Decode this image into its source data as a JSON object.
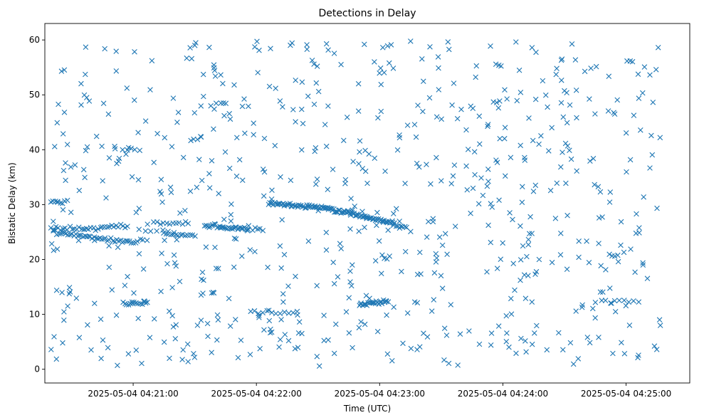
{
  "chart_data": {
    "type": "scatter",
    "title": "Detections in Delay",
    "xlabel": "Time (UTC)",
    "ylabel": "Bistatic Delay (km)",
    "marker": "x",
    "color": "#1f77b4",
    "grid": false,
    "xlim": [
      "2025-05-04 04:20:17",
      "2025-05-04 04:25:31"
    ],
    "ylim": [
      -2.5,
      63
    ],
    "x_ticks": [
      "2025-05-04 04:21:00",
      "2025-05-04 04:22:00",
      "2025-05-04 04:23:00",
      "2025-05-04 04:24:00",
      "2025-05-04 04:25:00"
    ],
    "y_ticks": [
      0,
      10,
      20,
      30,
      40,
      50,
      60
    ],
    "tracks": [
      {
        "x_start": "2025-05-04 04:20:20",
        "x_end": "2025-05-04 04:20:28",
        "y_start": 30.5,
        "y_end": 30.6,
        "n": 8
      },
      {
        "x_start": "2025-05-04 04:20:20",
        "x_end": "2025-05-04 04:20:44",
        "y_start": 25.8,
        "y_end": 25.5,
        "n": 22
      },
      {
        "x_start": "2025-05-04 04:20:21",
        "x_end": "2025-05-04 04:21:02",
        "y_start": 25.0,
        "y_end": 23.0,
        "n": 46
      },
      {
        "x_start": "2025-05-04 04:20:45",
        "x_end": "2025-05-04 04:20:57",
        "y_start": 26.0,
        "y_end": 26.0,
        "n": 12
      },
      {
        "x_start": "2025-05-04 04:20:55",
        "x_end": "2025-05-04 04:21:07",
        "y_start": 12.1,
        "y_end": 12.0,
        "n": 14
      },
      {
        "x_start": "2025-05-04 04:21:03",
        "x_end": "2025-05-04 04:21:20",
        "y_start": 25.2,
        "y_end": 25.1,
        "n": 7
      },
      {
        "x_start": "2025-05-04 04:21:10",
        "x_end": "2025-05-04 04:21:27",
        "y_start": 26.8,
        "y_end": 26.6,
        "n": 12
      },
      {
        "x_start": "2025-05-04 04:21:15",
        "x_end": "2025-05-04 04:21:30",
        "y_start": 24.6,
        "y_end": 24.3,
        "n": 14
      },
      {
        "x_start": "2025-05-04 04:21:35",
        "x_end": "2025-05-04 04:21:56",
        "y_start": 26.2,
        "y_end": 25.6,
        "n": 34
      },
      {
        "x_start": "2025-05-04 04:21:58",
        "x_end": "2025-05-04 04:22:03",
        "y_start": 25.5,
        "y_end": 25.4,
        "n": 5
      },
      {
        "x_start": "2025-05-04 04:21:57",
        "x_end": "2025-05-04 04:22:20",
        "y_start": 10.6,
        "y_end": 10.3,
        "n": 12
      },
      {
        "x_start": "2025-05-04 04:22:06",
        "x_end": "2025-05-04 04:22:35",
        "y_start": 30.3,
        "y_end": 29.3,
        "n": 52
      },
      {
        "x_start": "2025-05-04 04:22:35",
        "x_end": "2025-05-04 04:23:07",
        "y_start": 29.3,
        "y_end": 26.6,
        "n": 62
      },
      {
        "x_start": "2025-05-04 04:23:07",
        "x_end": "2025-05-04 04:23:13",
        "y_start": 26.3,
        "y_end": 25.9,
        "n": 8
      },
      {
        "x_start": "2025-05-04 04:22:50",
        "x_end": "2025-05-04 04:23:04",
        "y_start": 11.8,
        "y_end": 12.4,
        "n": 26
      },
      {
        "x_start": "2025-05-04 04:23:01",
        "x_end": "2025-05-04 04:23:05",
        "y_start": 20.5,
        "y_end": 20.4,
        "n": 4
      },
      {
        "x_start": "2025-05-04 04:24:50",
        "x_end": "2025-05-04 04:25:06",
        "y_start": 12.4,
        "y_end": 12.2,
        "n": 8
      },
      {
        "x_start": "2025-05-04 04:24:52",
        "x_end": "2025-05-04 04:24:56",
        "y_start": 20.8,
        "y_end": 20.6,
        "n": 4
      },
      {
        "x_start": "2025-05-04 04:20:55",
        "x_end": "2025-05-04 04:21:03",
        "y_start": 40.0,
        "y_end": 40.2,
        "n": 5
      },
      {
        "x_start": "2025-05-04 04:21:28",
        "x_end": "2025-05-04 04:21:33",
        "y_start": 42.0,
        "y_end": 42.3,
        "n": 4
      },
      {
        "x_start": "2025-05-04 04:21:38",
        "x_end": "2025-05-04 04:21:45",
        "y_start": 48.0,
        "y_end": 48.5,
        "n": 4
      }
    ],
    "clutter": {
      "count": 700,
      "x_range": [
        "2025-05-04 04:20:20",
        "2025-05-04 04:25:17"
      ],
      "y_range": [
        0.5,
        59.9
      ]
    }
  }
}
